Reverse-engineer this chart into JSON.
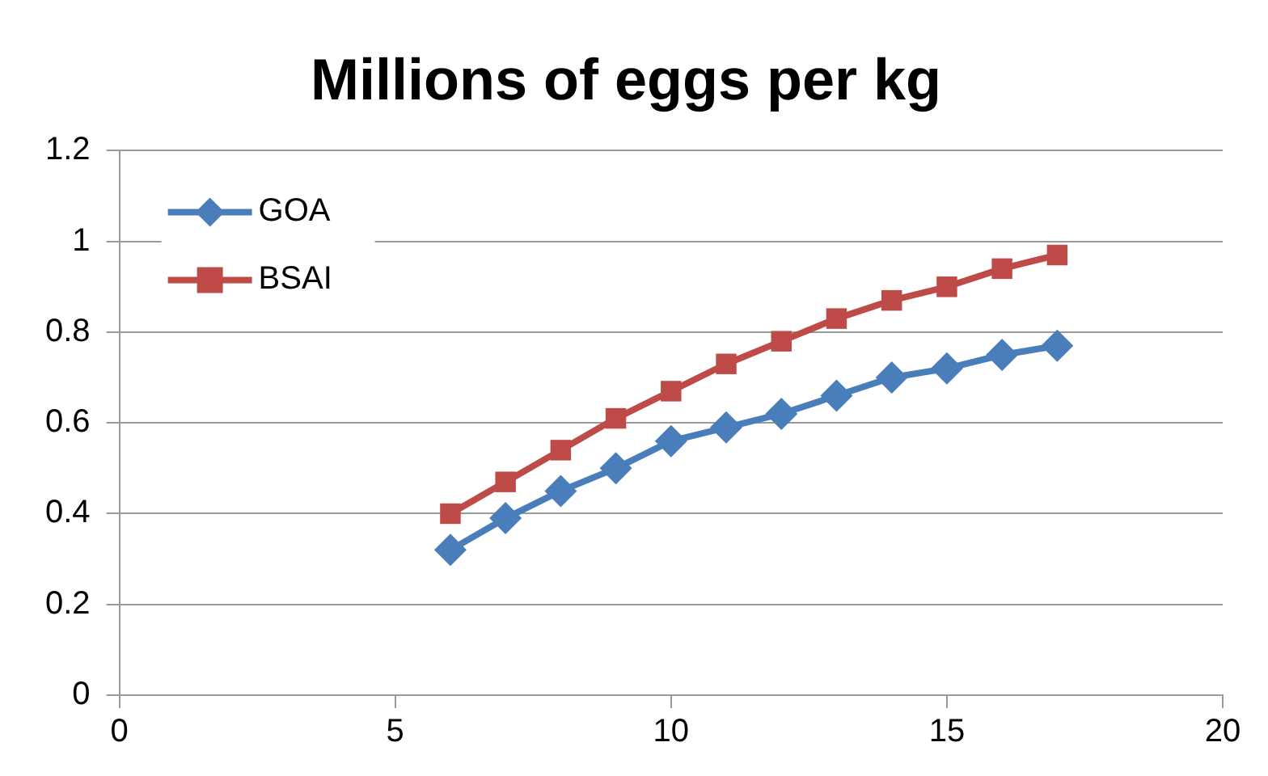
{
  "chart_data": {
    "type": "line",
    "title": "Millions of eggs per kg",
    "x": [
      6,
      7,
      8,
      9,
      10,
      11,
      12,
      13,
      14,
      15,
      16,
      17
    ],
    "series": [
      {
        "name": "GOA",
        "color": "#4a7ebb",
        "marker": "diamond",
        "values": [
          0.32,
          0.39,
          0.45,
          0.5,
          0.56,
          0.59,
          0.62,
          0.66,
          0.7,
          0.72,
          0.75,
          0.77
        ]
      },
      {
        "name": "BSAI",
        "color": "#be4b48",
        "marker": "square",
        "values": [
          0.4,
          0.47,
          0.54,
          0.61,
          0.67,
          0.73,
          0.78,
          0.83,
          0.87,
          0.9,
          0.94,
          0.97
        ]
      }
    ],
    "xlim": [
      0,
      20
    ],
    "xticks": [
      0,
      5,
      10,
      15,
      20
    ],
    "ylim": [
      0,
      1.2
    ],
    "yticks": [
      0,
      0.2,
      0.4,
      0.6,
      0.8,
      1,
      1.2
    ],
    "grid": "y",
    "legend": "top left",
    "line_style": "solid"
  }
}
